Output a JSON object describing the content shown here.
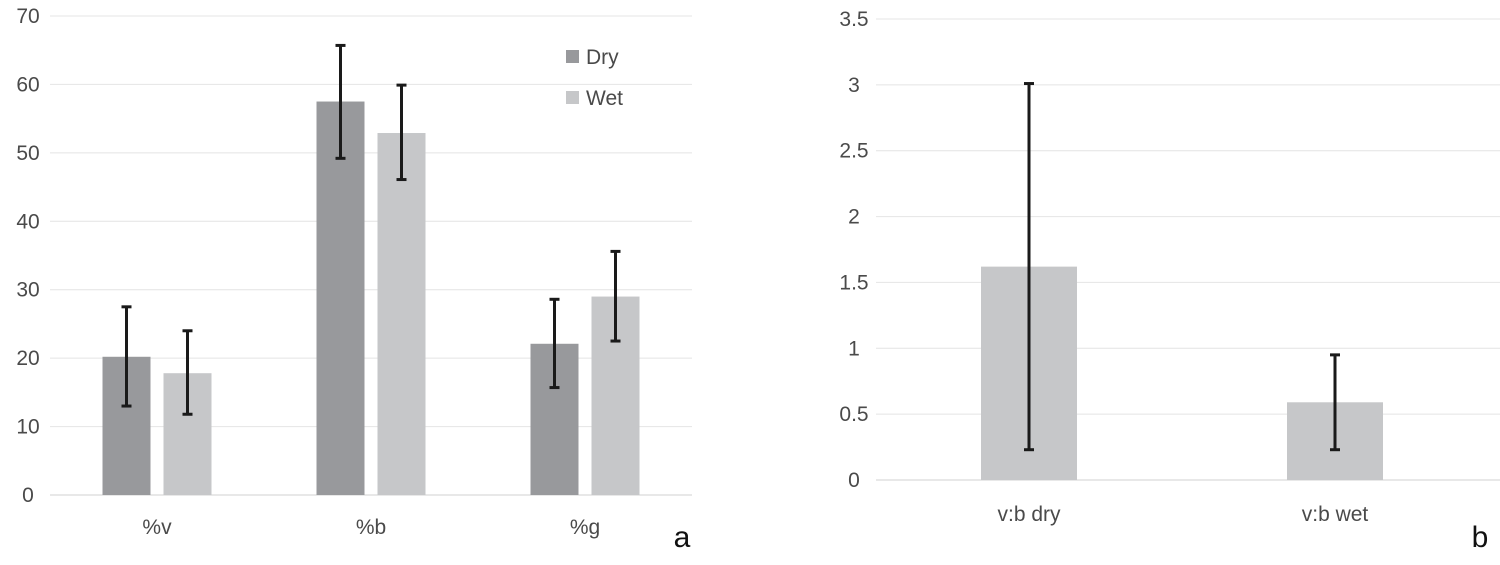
{
  "chart_data": [
    {
      "type": "bar",
      "panel_label": "a",
      "categories": [
        "%v",
        "%b",
        "%g"
      ],
      "series": [
        {
          "name": "Dry",
          "color": "#98999c",
          "values": [
            20.2,
            57.5,
            22.1
          ],
          "error_low": [
            13.0,
            49.2,
            15.7
          ],
          "error_high": [
            27.5,
            65.7,
            28.6
          ]
        },
        {
          "name": "Wet",
          "color": "#c6c7c9",
          "values": [
            17.8,
            52.9,
            29.0
          ],
          "error_low": [
            11.8,
            46.1,
            22.5
          ],
          "error_high": [
            24.0,
            59.9,
            35.6
          ]
        }
      ],
      "yticks": [
        "0",
        "10",
        "20",
        "30",
        "40",
        "50",
        "60",
        "70"
      ],
      "ylim": [
        0,
        70
      ],
      "legend": "top-right",
      "title": "",
      "xlabel": "",
      "ylabel": ""
    },
    {
      "type": "bar",
      "panel_label": "b",
      "categories": [
        "v:b dry",
        "v:b wet"
      ],
      "series": [
        {
          "name": "v:b",
          "color": "#c6c7c9",
          "values": [
            1.62,
            0.59
          ],
          "error_low": [
            0.23,
            0.23
          ],
          "error_high": [
            3.01,
            0.95
          ]
        }
      ],
      "yticks": [
        "0",
        "0.5",
        "1",
        "1.5",
        "2",
        "2.5",
        "3",
        "3.5"
      ],
      "ylim": [
        0,
        3.5
      ],
      "title": "",
      "xlabel": "",
      "ylabel": ""
    }
  ]
}
